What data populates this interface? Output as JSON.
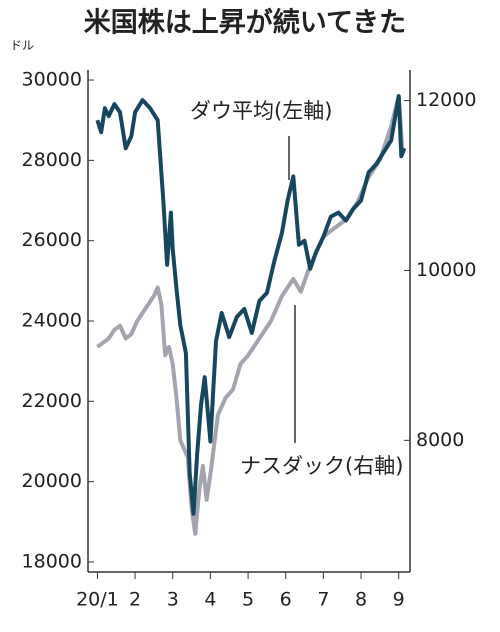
{
  "chart_data": {
    "type": "line",
    "title": "米国株は上昇が続いてきた",
    "y_unit": "ドル",
    "annotations": [
      "ダウ平均(左軸)",
      "ナスダック(右軸)"
    ],
    "xlim": [
      0.75,
      9.3
    ],
    "xticks": [
      {
        "value": 1,
        "label": "20/1"
      },
      2,
      3,
      4,
      5,
      6,
      7,
      8,
      9
    ],
    "ylim": [
      17750,
      30250
    ],
    "yticks": [
      18000,
      20000,
      22000,
      24000,
      26000,
      28000,
      30000
    ],
    "y2lim": [
      6450,
      12360
    ],
    "y2ticks": [
      8000,
      10000,
      12000
    ],
    "series": [
      {
        "name": "ダウ平均(左軸)",
        "color": "#17475f",
        "axis": "y",
        "x": [
          1.0,
          1.1,
          1.2,
          1.3,
          1.45,
          1.6,
          1.75,
          1.9,
          2.0,
          2.2,
          2.4,
          2.6,
          2.75,
          2.85,
          2.95,
          3.0,
          3.1,
          3.2,
          3.35,
          3.45,
          3.55,
          3.65,
          3.75,
          3.85,
          4.0,
          4.15,
          4.3,
          4.5,
          4.7,
          4.9,
          5.1,
          5.3,
          5.5,
          5.7,
          5.9,
          6.05,
          6.2,
          6.35,
          6.5,
          6.65,
          6.8,
          7.0,
          7.2,
          7.4,
          7.6,
          7.8,
          8.0,
          8.2,
          8.4,
          8.6,
          8.8,
          9.0,
          9.07,
          9.15
        ],
        "values": [
          29000,
          28700,
          29300,
          29100,
          29400,
          29200,
          28300,
          28600,
          29200,
          29500,
          29300,
          29000,
          27000,
          25400,
          26700,
          25800,
          24800,
          23900,
          23200,
          20200,
          19200,
          20700,
          21900,
          22600,
          21000,
          23500,
          24200,
          23600,
          24100,
          24300,
          23700,
          24500,
          24700,
          25500,
          26200,
          27000,
          27600,
          25900,
          26000,
          25300,
          25700,
          26100,
          26600,
          26700,
          26500,
          26800,
          27000,
          27700,
          27900,
          28200,
          28500,
          29600,
          28100,
          28300
        ]
      },
      {
        "name": "ナスダック(右軸)",
        "color": "#a3a4ad",
        "axis": "y2",
        "x": [
          1.0,
          1.15,
          1.3,
          1.45,
          1.6,
          1.75,
          1.9,
          2.05,
          2.2,
          2.35,
          2.5,
          2.6,
          2.7,
          2.8,
          2.9,
          3.0,
          3.1,
          3.2,
          3.3,
          3.4,
          3.5,
          3.6,
          3.7,
          3.8,
          3.9,
          4.0,
          4.2,
          4.4,
          4.6,
          4.8,
          5.0,
          5.3,
          5.6,
          5.9,
          6.2,
          6.4,
          6.6,
          6.8,
          7.0,
          7.3,
          7.6,
          7.9,
          8.2,
          8.5,
          8.8,
          9.0,
          9.1
        ],
        "values": [
          9100,
          9150,
          9200,
          9300,
          9350,
          9200,
          9250,
          9400,
          9500,
          9600,
          9700,
          9800,
          9600,
          9000,
          9100,
          8900,
          8500,
          8000,
          7900,
          7800,
          7200,
          6900,
          7400,
          7700,
          7300,
          7600,
          8300,
          8500,
          8600,
          8900,
          9000,
          9200,
          9400,
          9700,
          9900,
          9750,
          10000,
          10200,
          10400,
          10500,
          10600,
          10800,
          11100,
          11300,
          11700,
          12050,
          11400
        ]
      }
    ]
  }
}
